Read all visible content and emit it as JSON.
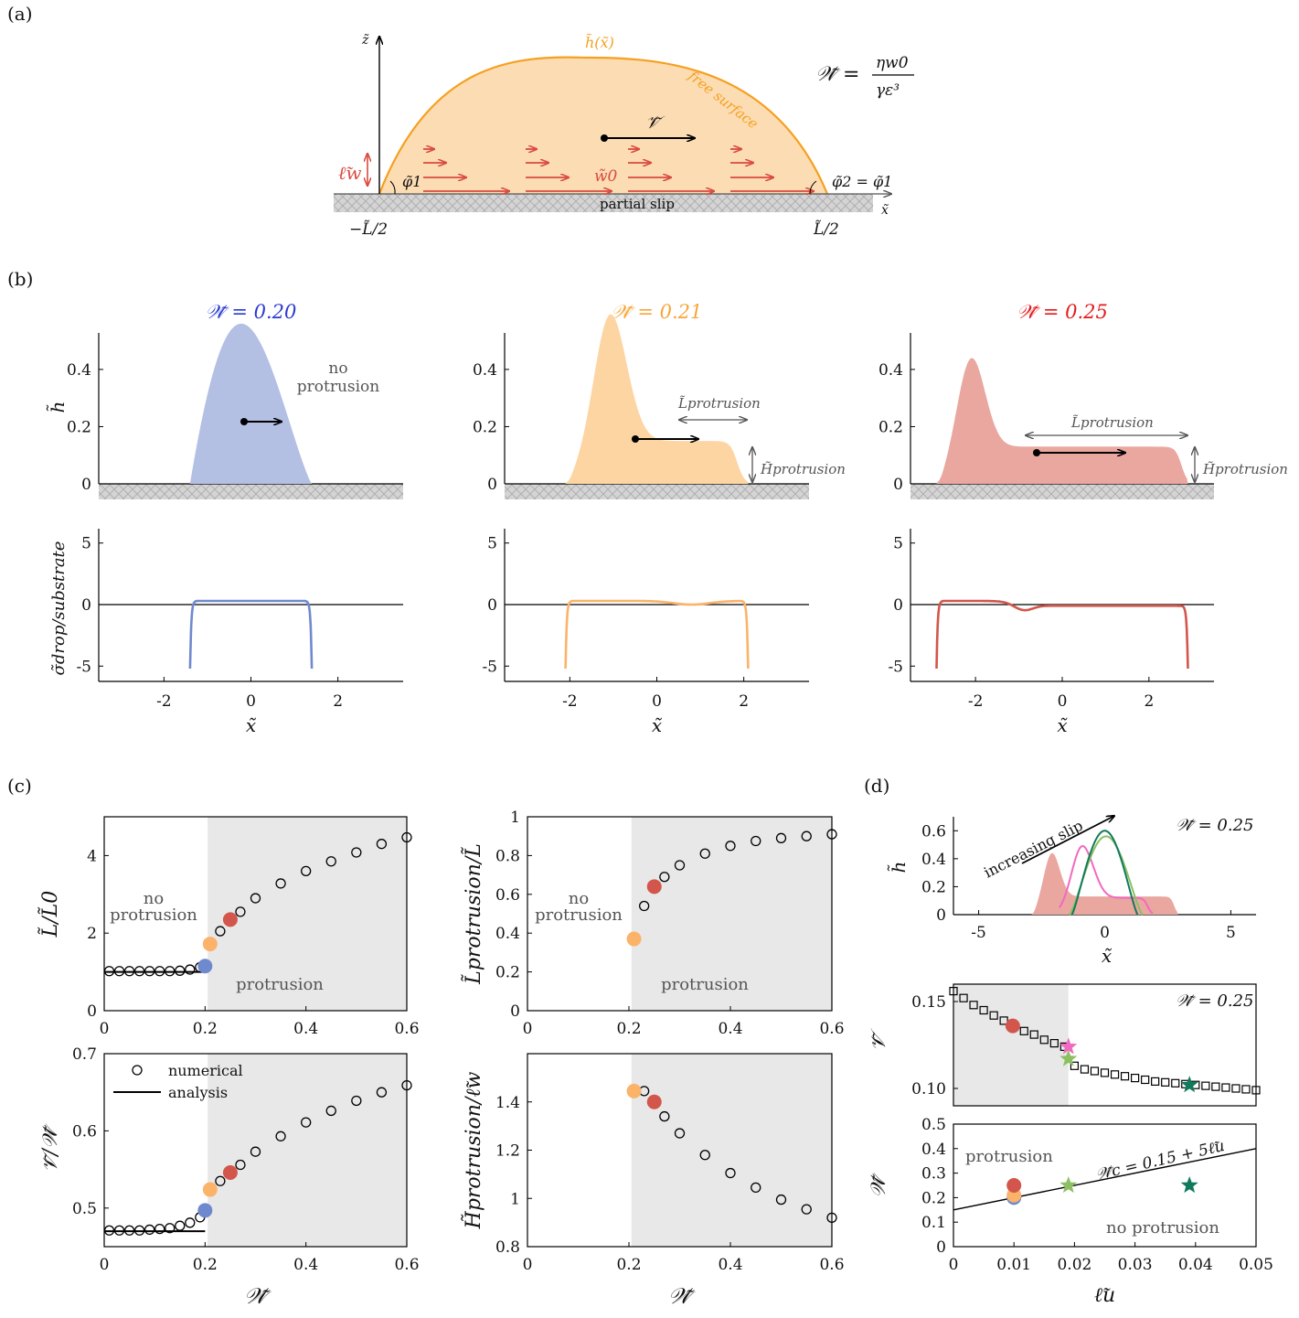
{
  "panel_labels": {
    "a": "(a)",
    "b": "(b)",
    "c": "(c)",
    "d": "(d)"
  },
  "schematic": {
    "z_axis": "z̃",
    "x_axis": "x̃",
    "surface_label": "h̃(x̃)",
    "free_surface": "free surface",
    "velocity": "𝒱̃",
    "slip_length": "ℓ̃w",
    "wall_speed": "w̃0",
    "phi1": "φ̃1",
    "phi2": "φ̃2 = φ̃1",
    "substrate": "partial slip",
    "left_end": "−L̃/2",
    "right_end": "L̃/2",
    "equation_lhs": "𝒲̃ =",
    "equation_num": "ηw0",
    "equation_den": "γε³",
    "colors": {
      "drop_fill": "#fcdcb3",
      "drop_line": "#f5a020",
      "arrows": "#d94a40"
    }
  },
  "profiles": {
    "titles": [
      "𝒲̃ = 0.20",
      "𝒲̃ = 0.21",
      "𝒲̃ = 0.25"
    ],
    "title_colors": [
      "#2a3ad0",
      "#f7a53a",
      "#e31a1c"
    ],
    "fill_colors": [
      "#b3bfe3",
      "#fdd5a3",
      "#e9a7a0"
    ],
    "line_colors": [
      "#6f89cf",
      "#fbb36a",
      "#d2564c"
    ],
    "h_ylabel": "h̃",
    "sigma_ylabel": "σ̃drop/substrate",
    "xlabel": "x̃",
    "no_protrusion": [
      "no",
      "protrusion"
    ],
    "L_protrusion": "L̃protrusion",
    "H_protrusion": "H̃protrusion",
    "h_ticks": [
      "0",
      "0.2",
      "0.4"
    ],
    "sigma_ticks": [
      "-5",
      "0",
      "5"
    ],
    "x_ticks": [
      "-2",
      "0",
      "2"
    ]
  },
  "panel_c": {
    "shaded_region_start": 0.205,
    "no_protrusion": [
      "no",
      "protrusion"
    ],
    "protrusion": "protrusion",
    "legend": {
      "numerical": "numerical",
      "analysis": "analysis"
    },
    "xlabel": "𝒲̃",
    "x_ticks": [
      "0",
      "0.2",
      "0.4",
      "0.6"
    ]
  },
  "panel_d": {
    "top_annotation": "𝒲̃ = 0.25",
    "increasing_slip": "increasing slip",
    "top_ylabel": "h̃",
    "top_xlabel": "x̃",
    "top_x_ticks": [
      "-5",
      "0",
      "5"
    ],
    "top_y_ticks": [
      "0",
      "0.2",
      "0.4",
      "0.6"
    ],
    "mid_annotation": "𝒲̃ = 0.25",
    "mid_ylabel": "𝒱̃",
    "mid_y_ticks": [
      "0.10",
      "0.15"
    ],
    "bottom_ylabel": "𝒲̃",
    "bottom_xlabel": "ℓ̃u",
    "bottom_x_ticks": [
      "0",
      "0.01",
      "0.02",
      "0.03",
      "0.04",
      "0.05"
    ],
    "bottom_y_ticks": [
      "0",
      "0.1",
      "0.2",
      "0.3",
      "0.4",
      "0.5"
    ],
    "protrusion": "protrusion",
    "no_protrusion": "no protrusion",
    "critical_line": "𝒲̃c = 0.15 + 5ℓ̃u",
    "star_colors": [
      "#f06ac0",
      "#8cc063",
      "#117a5c"
    ]
  },
  "chart_data": [
    {
      "type": "scatter",
      "id": "L_over_L0",
      "ylabel": "L̃/L̃0",
      "xlim": [
        0,
        0.6
      ],
      "ylim": [
        0,
        5
      ],
      "y_ticks": [
        "0",
        "2",
        "4"
      ],
      "numerical": {
        "x": [
          0.01,
          0.03,
          0.05,
          0.07,
          0.09,
          0.11,
          0.13,
          0.15,
          0.17,
          0.19,
          0.23,
          0.25,
          0.27,
          0.3,
          0.35,
          0.4,
          0.45,
          0.5,
          0.55,
          0.6
        ],
        "y": [
          1.02,
          1.02,
          1.02,
          1.02,
          1.02,
          1.02,
          1.02,
          1.03,
          1.06,
          1.12,
          2.05,
          2.35,
          2.55,
          2.9,
          3.28,
          3.6,
          3.85,
          4.08,
          4.3,
          4.47
        ]
      },
      "analysis": {
        "x": [
          0,
          0.2
        ],
        "y": [
          1.0,
          1.0
        ]
      },
      "highlighted": [
        {
          "x": 0.2,
          "y": 1.15,
          "color": "#6f89cf"
        },
        {
          "x": 0.21,
          "y": 1.72,
          "color": "#fbb36a"
        },
        {
          "x": 0.25,
          "y": 2.35,
          "color": "#d2564c"
        }
      ]
    },
    {
      "type": "scatter",
      "id": "Lprot_over_L",
      "ylabel": "L̃protrusion/L̃",
      "xlim": [
        0,
        0.6
      ],
      "ylim": [
        0,
        1
      ],
      "y_ticks": [
        "0",
        "0.2",
        "0.4",
        "0.6",
        "0.8",
        "1"
      ],
      "numerical": {
        "x": [
          0.23,
          0.27,
          0.3,
          0.35,
          0.4,
          0.45,
          0.5,
          0.55,
          0.6
        ],
        "y": [
          0.54,
          0.69,
          0.75,
          0.81,
          0.85,
          0.875,
          0.89,
          0.9,
          0.91
        ]
      },
      "highlighted": [
        {
          "x": 0.21,
          "y": 0.37,
          "color": "#fbb36a"
        },
        {
          "x": 0.25,
          "y": 0.64,
          "color": "#d2564c"
        }
      ]
    },
    {
      "type": "scatter",
      "id": "V_over_W",
      "ylabel": "𝒱̃/𝒲̃",
      "xlim": [
        0,
        0.6
      ],
      "ylim": [
        0.45,
        0.7
      ],
      "y_ticks": [
        "0.5",
        "0.6",
        "0.7"
      ],
      "numerical": {
        "x": [
          0.01,
          0.03,
          0.05,
          0.07,
          0.09,
          0.11,
          0.13,
          0.15,
          0.17,
          0.19,
          0.23,
          0.25,
          0.27,
          0.3,
          0.35,
          0.4,
          0.45,
          0.5,
          0.55,
          0.6
        ],
        "y": [
          0.471,
          0.471,
          0.471,
          0.471,
          0.472,
          0.473,
          0.474,
          0.477,
          0.481,
          0.488,
          0.535,
          0.546,
          0.556,
          0.573,
          0.593,
          0.611,
          0.626,
          0.639,
          0.65,
          0.659
        ]
      },
      "analysis": {
        "x": [
          0,
          0.2
        ],
        "y": [
          0.47,
          0.47
        ]
      },
      "highlighted": [
        {
          "x": 0.2,
          "y": 0.497,
          "color": "#6f89cf"
        },
        {
          "x": 0.21,
          "y": 0.524,
          "color": "#fbb36a"
        },
        {
          "x": 0.25,
          "y": 0.546,
          "color": "#d2564c"
        }
      ]
    },
    {
      "type": "scatter",
      "id": "Hprot_over_lw",
      "ylabel": "H̃protrusion/ℓ̃w",
      "xlim": [
        0,
        0.6
      ],
      "ylim": [
        0.8,
        1.6
      ],
      "y_ticks": [
        "0.8",
        "1",
        "1.2",
        "1.4"
      ],
      "numerical": {
        "x": [
          0.23,
          0.27,
          0.3,
          0.35,
          0.4,
          0.45,
          0.5,
          0.55,
          0.6
        ],
        "y": [
          1.445,
          1.34,
          1.27,
          1.18,
          1.105,
          1.045,
          0.995,
          0.955,
          0.92
        ]
      },
      "highlighted": [
        {
          "x": 0.21,
          "y": 1.445,
          "color": "#fbb36a"
        },
        {
          "x": 0.25,
          "y": 1.4,
          "color": "#d2564c"
        }
      ]
    },
    {
      "type": "scatter",
      "id": "V_vs_lu",
      "ylabel": "𝒱̃",
      "xlim": [
        0,
        0.05
      ],
      "ylim": [
        0.09,
        0.16
      ],
      "numerical": {
        "x": [
          0,
          0.00167,
          0.00333,
          0.005,
          0.00667,
          0.00833,
          0.01,
          0.01167,
          0.01333,
          0.015,
          0.01667,
          0.01833,
          0.02,
          0.02167,
          0.02333,
          0.025,
          0.02667,
          0.02833,
          0.03,
          0.03167,
          0.03333,
          0.035,
          0.03667,
          0.03833,
          0.04,
          0.04167,
          0.04333,
          0.045,
          0.04667,
          0.04833,
          0.05
        ],
        "y": [
          0.156,
          0.152,
          0.148,
          0.145,
          0.142,
          0.139,
          0.136,
          0.133,
          0.131,
          0.128,
          0.126,
          0.124,
          0.113,
          0.111,
          0.11,
          0.109,
          0.108,
          0.107,
          0.106,
          0.105,
          0.104,
          0.1035,
          0.103,
          0.1025,
          0.102,
          0.1015,
          0.101,
          0.1005,
          0.1,
          0.0995,
          0.099
        ]
      },
      "highlighted_circle": {
        "x": 0.0098,
        "y": 0.136,
        "color": "#d2564c"
      },
      "stars": [
        {
          "x": 0.019,
          "y": 0.124,
          "color": "#f06ac0"
        },
        {
          "x": 0.019,
          "y": 0.117,
          "color": "#8cc063"
        },
        {
          "x": 0.039,
          "y": 0.102,
          "color": "#117a5c"
        }
      ]
    },
    {
      "type": "scatter",
      "id": "W_vs_lu",
      "ylabel": "𝒲̃",
      "xlim": [
        0,
        0.05
      ],
      "ylim": [
        0,
        0.5
      ],
      "critical_line": {
        "x": [
          0,
          0.05
        ],
        "y": [
          0.15,
          0.4
        ]
      },
      "circles": [
        {
          "x": 0.01,
          "y": 0.2,
          "color": "#6f89cf"
        },
        {
          "x": 0.01,
          "y": 0.21,
          "color": "#fbb36a"
        },
        {
          "x": 0.01,
          "y": 0.25,
          "color": "#d2564c"
        }
      ],
      "stars": [
        {
          "x": 0.019,
          "y": 0.25,
          "color": "#8cc063"
        },
        {
          "x": 0.039,
          "y": 0.25,
          "color": "#117a5c"
        }
      ]
    }
  ]
}
